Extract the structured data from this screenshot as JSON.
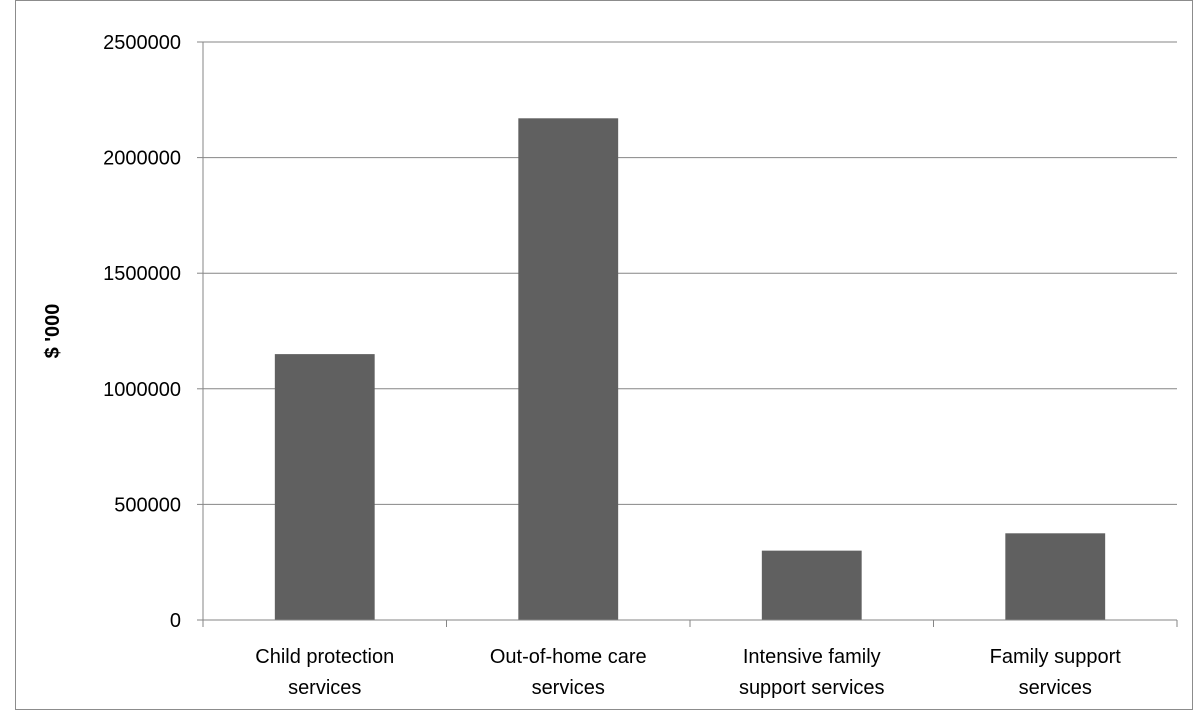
{
  "chart_data": {
    "type": "bar",
    "title": "",
    "xlabel": "",
    "ylabel": "$ '000",
    "categories": [
      [
        "Child protection",
        "services"
      ],
      [
        "Out-of-home care",
        "services"
      ],
      [
        "Intensive family",
        "support services"
      ],
      [
        "Family support",
        "services"
      ]
    ],
    "values": [
      1150000,
      2170000,
      300000,
      375000
    ],
    "ylim": [
      0,
      2500000
    ],
    "yticks": [
      0,
      500000,
      1000000,
      1500000,
      2000000,
      2500000
    ],
    "ytick_labels": [
      "0",
      "500000",
      "1000000",
      "1500000",
      "2000000",
      "2500000"
    ],
    "grid": true,
    "legend": "none",
    "bar_color": "#606060",
    "grid_color": "#868686"
  }
}
